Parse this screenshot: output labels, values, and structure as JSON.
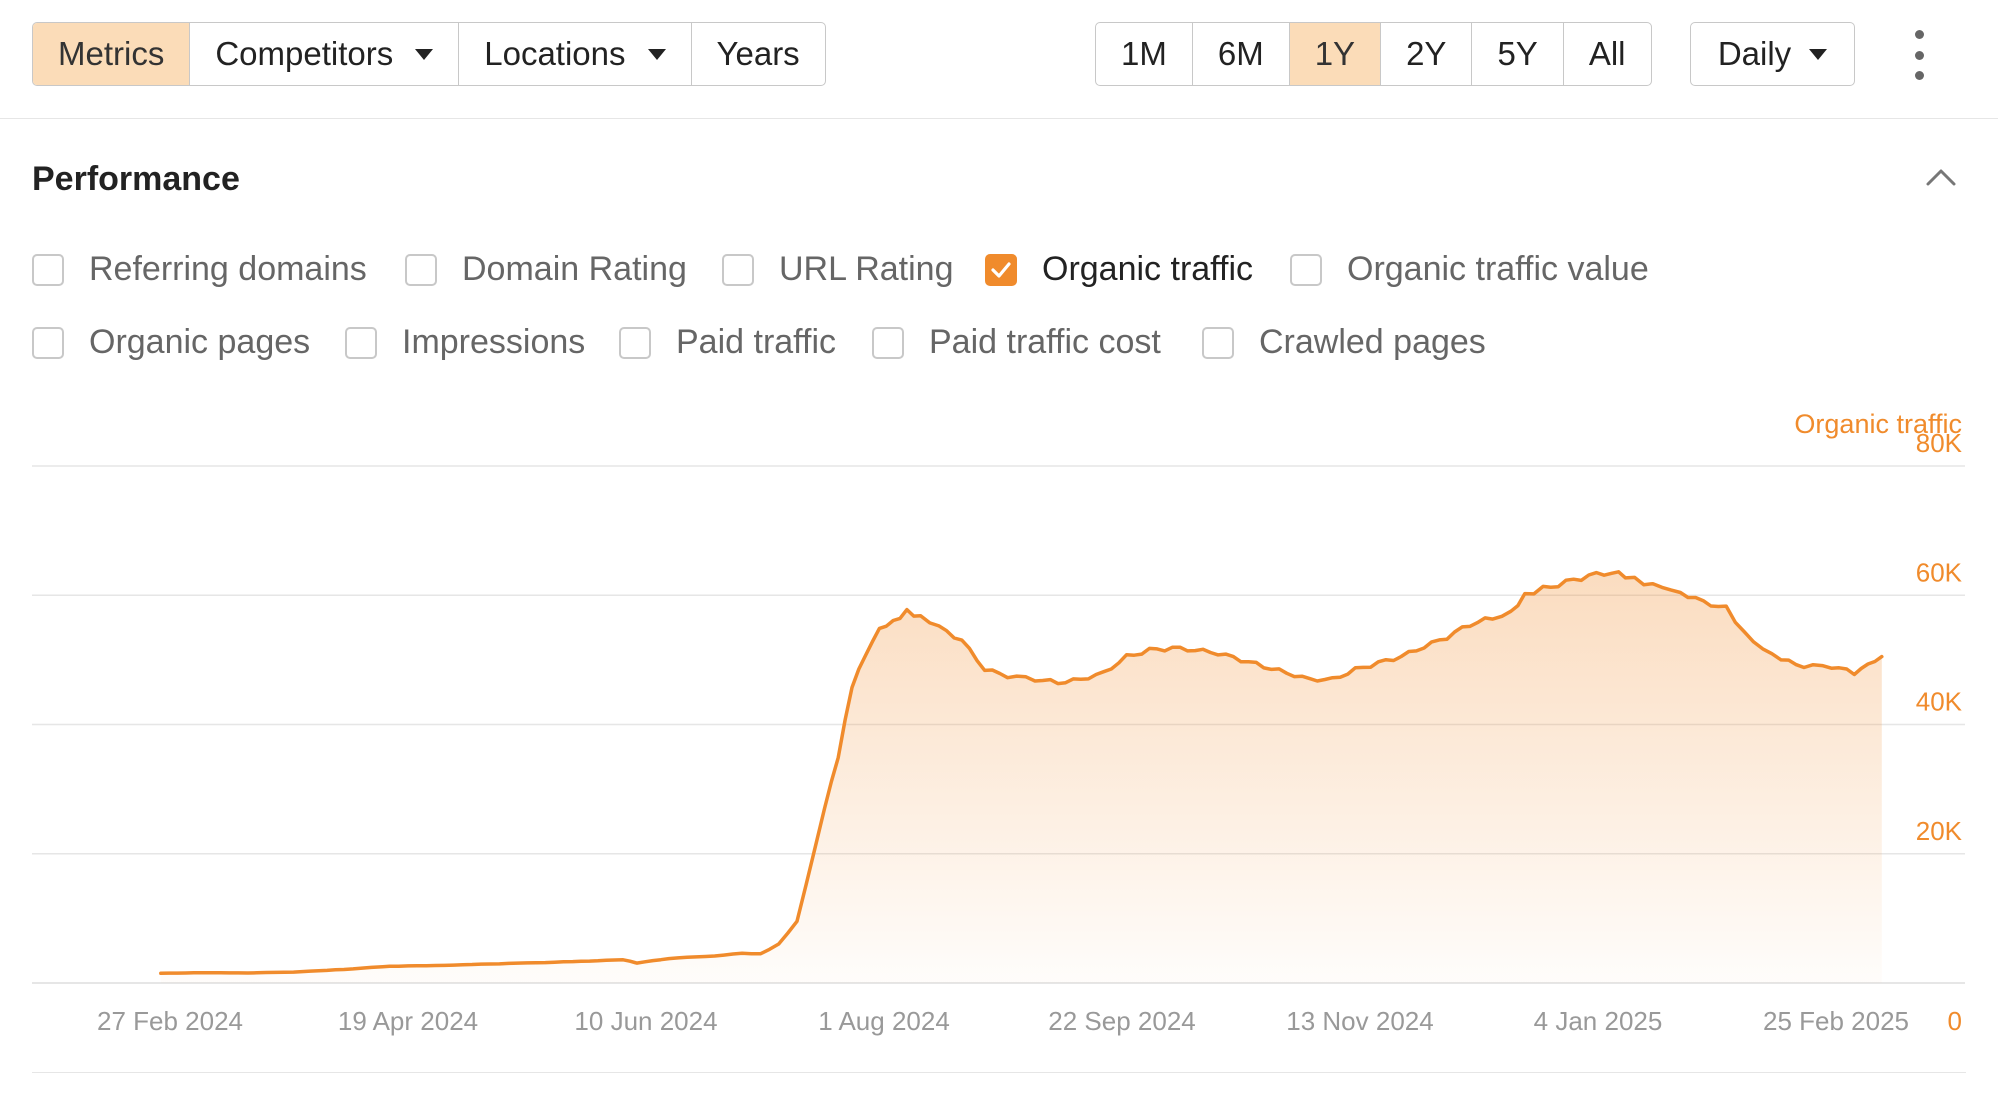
{
  "toolbar": {
    "tabs": [
      {
        "label": "Metrics",
        "active": true,
        "dropdown": false
      },
      {
        "label": "Competitors",
        "active": false,
        "dropdown": true
      },
      {
        "label": "Locations",
        "active": false,
        "dropdown": true
      },
      {
        "label": "Years",
        "active": false,
        "dropdown": false
      }
    ],
    "ranges": [
      {
        "label": "1M",
        "active": false
      },
      {
        "label": "6M",
        "active": false
      },
      {
        "label": "1Y",
        "active": true
      },
      {
        "label": "2Y",
        "active": false
      },
      {
        "label": "5Y",
        "active": false
      },
      {
        "label": "All",
        "active": false
      }
    ],
    "granularity": "Daily",
    "more_icon": "kebab-vertical-icon"
  },
  "section": {
    "title": "Performance",
    "collapse_icon": "chevron-up-icon"
  },
  "metrics": [
    {
      "label": "Referring domains",
      "checked": false
    },
    {
      "label": "Domain Rating",
      "checked": false
    },
    {
      "label": "URL Rating",
      "checked": false
    },
    {
      "label": "Organic traffic",
      "checked": true
    },
    {
      "label": "Organic traffic value",
      "checked": false
    },
    {
      "label": "Organic pages",
      "checked": false
    },
    {
      "label": "Impressions",
      "checked": false
    },
    {
      "label": "Paid traffic",
      "checked": false
    },
    {
      "label": "Paid traffic cost",
      "checked": false
    },
    {
      "label": "Crawled pages",
      "checked": false
    }
  ],
  "colors": {
    "accent": "#f08b2c",
    "active_tab": "#fbdcb8",
    "border": "#c8c8c8",
    "grid": "#e6e6e6",
    "tick_text": "#999999"
  },
  "chart_data": {
    "type": "area",
    "series": [
      {
        "name": "Organic traffic",
        "color": "#f08b2c",
        "points": [
          [
            "2024-02-25",
            1500
          ],
          [
            "2024-03-05",
            1600
          ],
          [
            "2024-03-15",
            1550
          ],
          [
            "2024-03-25",
            1700
          ],
          [
            "2024-04-05",
            2100
          ],
          [
            "2024-04-15",
            2600
          ],
          [
            "2024-04-25",
            2700
          ],
          [
            "2024-05-05",
            2900
          ],
          [
            "2024-05-15",
            3100
          ],
          [
            "2024-05-25",
            3300
          ],
          [
            "2024-06-05",
            3600
          ],
          [
            "2024-06-08",
            3100
          ],
          [
            "2024-06-15",
            3800
          ],
          [
            "2024-06-25",
            4200
          ],
          [
            "2024-07-01",
            4600
          ],
          [
            "2024-07-05",
            4500
          ],
          [
            "2024-07-09",
            6000
          ],
          [
            "2024-07-13",
            9500
          ],
          [
            "2024-07-17",
            21000
          ],
          [
            "2024-07-19",
            27000
          ],
          [
            "2024-07-22",
            35000
          ],
          [
            "2024-07-25",
            46000
          ],
          [
            "2024-07-28",
            51000
          ],
          [
            "2024-07-31",
            55000
          ],
          [
            "2024-08-03",
            56000
          ],
          [
            "2024-08-06",
            57500
          ],
          [
            "2024-08-09",
            56500
          ],
          [
            "2024-08-13",
            55000
          ],
          [
            "2024-08-18",
            53000
          ],
          [
            "2024-08-23",
            48500
          ],
          [
            "2024-08-28",
            47500
          ],
          [
            "2024-09-03",
            47000
          ],
          [
            "2024-09-08",
            46500
          ],
          [
            "2024-09-13",
            47000
          ],
          [
            "2024-09-18",
            48000
          ],
          [
            "2024-09-23",
            50500
          ],
          [
            "2024-09-28",
            51500
          ],
          [
            "2024-10-03",
            51800
          ],
          [
            "2024-10-08",
            51500
          ],
          [
            "2024-10-13",
            51000
          ],
          [
            "2024-10-18",
            50000
          ],
          [
            "2024-10-23",
            49000
          ],
          [
            "2024-10-28",
            48000
          ],
          [
            "2024-11-02",
            47000
          ],
          [
            "2024-11-07",
            47000
          ],
          [
            "2024-11-12",
            48500
          ],
          [
            "2024-11-17",
            49500
          ],
          [
            "2024-11-22",
            50500
          ],
          [
            "2024-11-27",
            52000
          ],
          [
            "2024-12-02",
            53500
          ],
          [
            "2024-12-07",
            55500
          ],
          [
            "2024-12-12",
            56500
          ],
          [
            "2024-12-16",
            57500
          ],
          [
            "2024-12-19",
            60000
          ],
          [
            "2024-12-23",
            61000
          ],
          [
            "2024-12-28",
            62000
          ],
          [
            "2025-01-02",
            63000
          ],
          [
            "2025-01-07",
            63500
          ],
          [
            "2025-01-10",
            63000
          ],
          [
            "2025-01-14",
            62000
          ],
          [
            "2025-01-18",
            61500
          ],
          [
            "2025-01-22",
            60500
          ],
          [
            "2025-01-27",
            59000
          ],
          [
            "2025-02-01",
            58000
          ],
          [
            "2025-02-05",
            54000
          ],
          [
            "2025-02-09",
            51500
          ],
          [
            "2025-02-13",
            50000
          ],
          [
            "2025-02-18",
            49000
          ],
          [
            "2025-02-24",
            49000
          ],
          [
            "2025-03-01",
            48000
          ],
          [
            "2025-03-04",
            49500
          ],
          [
            "2025-03-07",
            50500
          ]
        ]
      }
    ],
    "x_ticks": [
      "27 Feb 2024",
      "19 Apr 2024",
      "10 Jun 2024",
      "1 Aug 2024",
      "22 Sep 2024",
      "13 Nov 2024",
      "4 Jan 2025",
      "25 Feb 2025"
    ],
    "y_ticks": [
      "0",
      "20K",
      "40K",
      "60K",
      "80K"
    ],
    "y_axis_title": "Organic traffic",
    "ylim": [
      0,
      80000
    ],
    "grid": true,
    "y_axis_position": "right"
  }
}
